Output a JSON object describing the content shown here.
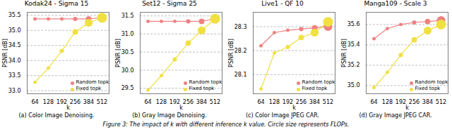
{
  "chart_data": [
    {
      "type": "line",
      "title": "Kodak24 - Sigma 15",
      "xlabel": "k",
      "ylabel": "PSNR [dB]",
      "categories": [
        "64",
        "128",
        "192",
        "256",
        "384",
        "512"
      ],
      "series": [
        {
          "name": "Random topk",
          "color": "#f08080",
          "marker": "circle",
          "values": [
            35.38,
            35.38,
            35.38,
            35.38,
            35.38,
            35.42
          ],
          "sizes": [
            20,
            20,
            20,
            30,
            50,
            120
          ]
        },
        {
          "name": "Fixed topk",
          "color": "#f0e040",
          "marker": "circle",
          "values": [
            33.28,
            33.75,
            34.32,
            34.95,
            35.25,
            35.42
          ],
          "sizes": [
            20,
            20,
            30,
            50,
            100,
            160
          ]
        }
      ],
      "ylim": [
        32.9,
        35.6
      ],
      "yticks": [
        {
          "value": 33.0,
          "label": "33.0"
        },
        33.5,
        {
          "value": 34.0,
          "label": "34.0"
        },
        34.5,
        {
          "value": 35.0,
          "label": "35.0"
        },
        35.5
      ],
      "grid": true,
      "legend": "lower right",
      "caption": "(a) Color Image Denoising."
    },
    {
      "type": "line",
      "title": "Set12 - Sigma 25",
      "xlabel": "k",
      "ylabel": "PSNR [dB]",
      "categories": [
        "64",
        "128",
        "192",
        "256",
        "384",
        "512"
      ],
      "series": [
        {
          "name": "Random topk",
          "color": "#f08080",
          "marker": "circle",
          "values": [
            31.35,
            31.35,
            31.35,
            31.35,
            31.35,
            31.42
          ],
          "sizes": [
            20,
            20,
            20,
            30,
            50,
            120
          ]
        },
        {
          "name": "Fixed topk",
          "color": "#f0e040",
          "marker": "circle",
          "values": [
            29.45,
            29.85,
            30.3,
            30.75,
            31.1,
            31.42
          ],
          "sizes": [
            20,
            20,
            30,
            50,
            100,
            160
          ]
        }
      ],
      "ylim": [
        29.35,
        31.6
      ],
      "yticks": [
        29.5,
        {
          "value": 30.0,
          "label": "30.0"
        },
        30.5,
        {
          "value": 31.0,
          "label": "31.0"
        },
        31.5
      ],
      "grid": true,
      "legend": "lower right",
      "caption": "(b) Gray Image Denoising."
    },
    {
      "type": "line",
      "title": "Live1 - QF 10",
      "xlabel": "k",
      "ylabel": "PSNR [dB]",
      "categories": [
        "64",
        "128",
        "192",
        "256",
        "384",
        "512"
      ],
      "series": [
        {
          "name": "Random topk",
          "color": "#f08080",
          "marker": "circle",
          "values": [
            28.22,
            28.275,
            28.285,
            28.29,
            28.295,
            28.3
          ],
          "sizes": [
            20,
            20,
            20,
            30,
            50,
            120
          ]
        },
        {
          "name": "Fixed topk",
          "color": "#f0e040",
          "marker": "circle",
          "values": [
            28.04,
            28.19,
            28.215,
            28.255,
            28.275,
            28.32
          ],
          "sizes": [
            20,
            20,
            30,
            50,
            100,
            160
          ]
        }
      ],
      "ylim": [
        28.02,
        28.36
      ],
      "yticks": [
        28.1,
        28.2,
        28.3
      ],
      "grid": true,
      "legend": "lower right",
      "caption": "(c) Color Image JPEG CAR."
    },
    {
      "type": "line",
      "title": "Manga109 - Scale 3",
      "xlabel": "k",
      "ylabel": "PSNR [dB]",
      "categories": [
        "64",
        "128",
        "192",
        "256",
        "384",
        "512"
      ],
      "series": [
        {
          "name": "Random topk",
          "color": "#f08080",
          "marker": "circle",
          "values": [
            35.46,
            35.56,
            35.6,
            35.62,
            35.63,
            35.64
          ],
          "sizes": [
            20,
            20,
            20,
            30,
            50,
            120
          ]
        },
        {
          "name": "Fixed topk",
          "color": "#f0e040",
          "marker": "circle",
          "values": [
            34.98,
            35.13,
            35.3,
            35.45,
            35.54,
            35.6
          ],
          "sizes": [
            20,
            20,
            30,
            50,
            100,
            160
          ]
        }
      ],
      "ylim": [
        34.92,
        35.72
      ],
      "yticks": [
        {
          "value": 35.0,
          "label": "35.0"
        },
        35.2,
        35.4,
        35.6
      ],
      "grid": true,
      "legend": "lower right",
      "caption": "(d) Gray Image JPEG CAR."
    }
  ],
  "caption": "Figure 3: The impact of k with different inference k value. Circle size represents FLOPs."
}
